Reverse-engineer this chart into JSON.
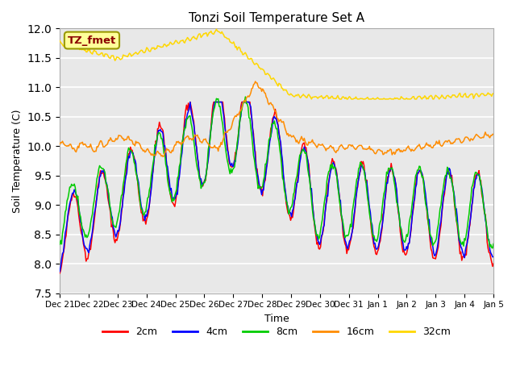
{
  "title": "Tonzi Soil Temperature Set A",
  "xlabel": "Time",
  "ylabel": "Soil Temperature (C)",
  "ylim": [
    7.5,
    12.0
  ],
  "yticks": [
    7.5,
    8.0,
    8.5,
    9.0,
    9.5,
    10.0,
    10.5,
    11.0,
    11.5,
    12.0
  ],
  "legend_label": "TZ_fmet",
  "legend_bg": "#FFFF99",
  "legend_border": "#999900",
  "legend_text_color": "#8B0000",
  "series_labels": [
    "2cm",
    "4cm",
    "8cm",
    "16cm",
    "32cm"
  ],
  "series_colors": [
    "#FF0000",
    "#0000FF",
    "#00CC00",
    "#FF8C00",
    "#FFD700"
  ],
  "xtick_labels": [
    "Dec 21",
    "Dec 22",
    "Dec 23",
    "Dec 24",
    "Dec 25",
    "Dec 26",
    "Dec 27",
    "Dec 28",
    "Dec 29",
    "Dec 30",
    "Dec 31",
    "Jan 1",
    "Jan 2",
    "Jan 3",
    "Jan 4",
    "Jan 5"
  ],
  "plot_bg": "#E8E8E8",
  "n_points": 480
}
